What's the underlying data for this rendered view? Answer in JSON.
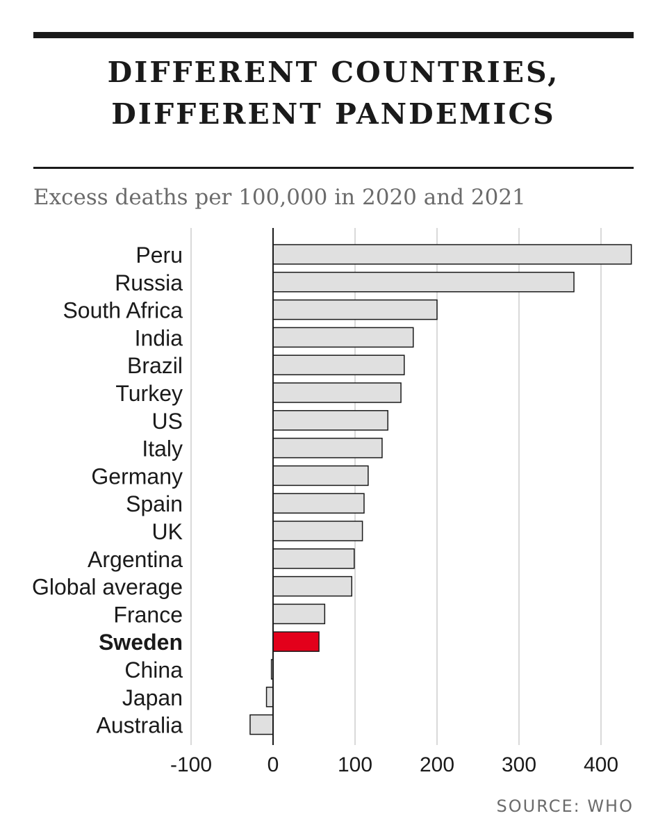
{
  "header": {
    "title_line1": "DIFFERENT COUNTRIES,",
    "title_line2": "DIFFERENT PANDEMICS",
    "subtitle": "Excess deaths per 100,000 in 2020 and 2021"
  },
  "footer": {
    "source": "SOURCE: WHO"
  },
  "colors": {
    "bar_default": "#e0e0e0",
    "bar_highlight": "#e3001b",
    "bar_stroke": "#1a1a1a",
    "grid": "#d9d9d9",
    "text": "#1a1a1a"
  },
  "chart_data": {
    "type": "bar",
    "orientation": "horizontal",
    "categories": [
      "Peru",
      "Russia",
      "South Africa",
      "India",
      "Brazil",
      "Turkey",
      "US",
      "Italy",
      "Germany",
      "Spain",
      "UK",
      "Argentina",
      "Global average",
      "France",
      "Sweden",
      "China",
      "Japan",
      "Australia"
    ],
    "values": [
      437,
      367,
      200,
      171,
      160,
      156,
      140,
      133,
      116,
      111,
      109,
      99,
      96,
      63,
      56,
      -2,
      -8,
      -28
    ],
    "highlight": "Sweden",
    "xlim": [
      -100,
      440
    ],
    "xticks": [
      -100,
      0,
      100,
      200,
      300,
      400
    ],
    "grid": true
  }
}
